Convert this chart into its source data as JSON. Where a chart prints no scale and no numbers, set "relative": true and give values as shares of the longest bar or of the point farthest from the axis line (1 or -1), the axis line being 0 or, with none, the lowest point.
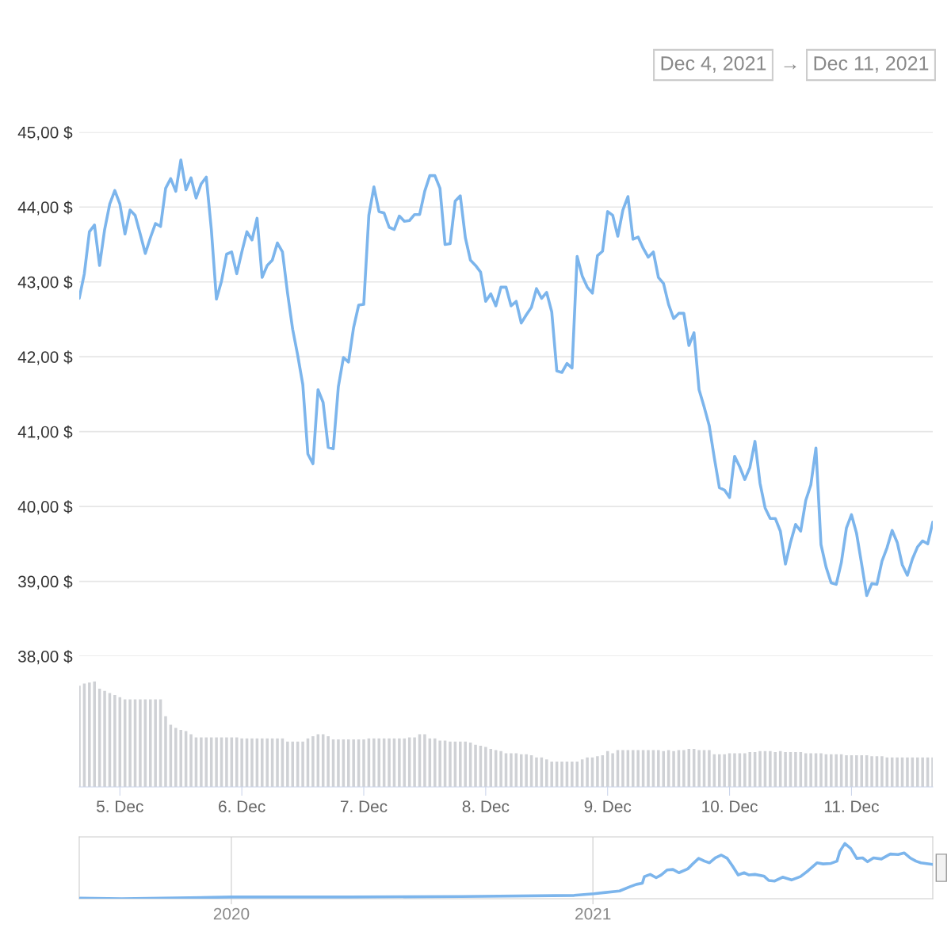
{
  "chart_data": [
    {
      "type": "line",
      "color": "#7cb5ec",
      "grid": "y",
      "tick_labels": "y",
      "xlim": [
        "2021-12-04T16:00",
        "2021-12-11T16:00"
      ],
      "ylim": [
        38,
        45
      ],
      "yticks": [
        {
          "value": 38,
          "label": "38,00 $"
        },
        {
          "value": 39,
          "label": "39,00 $"
        },
        {
          "value": 40,
          "label": "40,00 $"
        },
        {
          "value": 41,
          "label": "41,00 $"
        },
        {
          "value": 42,
          "label": "42,00 $"
        },
        {
          "value": 43,
          "label": "43,00 $"
        },
        {
          "value": 44,
          "label": "44,00 $"
        },
        {
          "value": 45,
          "label": "45,00 $"
        }
      ],
      "annotations": [
        "Dec 4, 2021",
        "→",
        "Dec 11, 2021"
      ],
      "x": [
        "2021-12-04T16:00",
        "2021-12-04T17:00",
        "2021-12-04T18:00",
        "2021-12-04T19:00",
        "2021-12-04T20:00",
        "2021-12-04T21:00",
        "2021-12-04T22:00",
        "2021-12-04T23:00",
        "2021-12-05T00:00",
        "2021-12-05T01:00",
        "2021-12-05T02:00",
        "2021-12-05T03:00",
        "2021-12-05T04:00",
        "2021-12-05T05:00",
        "2021-12-05T06:00",
        "2021-12-05T07:00",
        "2021-12-05T08:00",
        "2021-12-05T09:00",
        "2021-12-05T10:00",
        "2021-12-05T11:00",
        "2021-12-05T12:00",
        "2021-12-05T13:00",
        "2021-12-05T14:00",
        "2021-12-05T15:00",
        "2021-12-05T16:00",
        "2021-12-05T17:00",
        "2021-12-05T18:00",
        "2021-12-05T19:00",
        "2021-12-05T20:00",
        "2021-12-05T21:00",
        "2021-12-05T22:00",
        "2021-12-05T23:00",
        "2021-12-06T00:00",
        "2021-12-06T01:00",
        "2021-12-06T02:00",
        "2021-12-06T03:00",
        "2021-12-06T04:00",
        "2021-12-06T05:00",
        "2021-12-06T06:00",
        "2021-12-06T07:00",
        "2021-12-06T08:00",
        "2021-12-06T09:00",
        "2021-12-06T10:00",
        "2021-12-06T11:00",
        "2021-12-06T12:00",
        "2021-12-06T13:00",
        "2021-12-06T14:00",
        "2021-12-06T15:00",
        "2021-12-06T16:00",
        "2021-12-06T17:00",
        "2021-12-06T18:00",
        "2021-12-06T19:00",
        "2021-12-06T20:00",
        "2021-12-06T21:00",
        "2021-12-06T22:00",
        "2021-12-06T23:00",
        "2021-12-07T00:00",
        "2021-12-07T01:00",
        "2021-12-07T02:00",
        "2021-12-07T03:00",
        "2021-12-07T04:00",
        "2021-12-07T05:00",
        "2021-12-07T06:00",
        "2021-12-07T07:00",
        "2021-12-07T08:00",
        "2021-12-07T09:00",
        "2021-12-07T10:00",
        "2021-12-07T11:00",
        "2021-12-07T12:00",
        "2021-12-07T13:00",
        "2021-12-07T14:00",
        "2021-12-07T15:00",
        "2021-12-07T16:00",
        "2021-12-07T17:00",
        "2021-12-07T18:00",
        "2021-12-07T19:00",
        "2021-12-07T20:00",
        "2021-12-07T21:00",
        "2021-12-07T22:00",
        "2021-12-07T23:00",
        "2021-12-08T00:00",
        "2021-12-08T01:00",
        "2021-12-08T02:00",
        "2021-12-08T03:00",
        "2021-12-08T04:00",
        "2021-12-08T05:00",
        "2021-12-08T06:00",
        "2021-12-08T07:00",
        "2021-12-08T08:00",
        "2021-12-08T09:00",
        "2021-12-08T10:00",
        "2021-12-08T11:00",
        "2021-12-08T12:00",
        "2021-12-08T13:00",
        "2021-12-08T14:00",
        "2021-12-08T15:00",
        "2021-12-08T16:00",
        "2021-12-08T17:00",
        "2021-12-08T18:00",
        "2021-12-08T19:00",
        "2021-12-08T20:00",
        "2021-12-08T21:00",
        "2021-12-08T22:00",
        "2021-12-08T23:00",
        "2021-12-09T00:00",
        "2021-12-09T01:00",
        "2021-12-09T02:00",
        "2021-12-09T03:00",
        "2021-12-09T04:00",
        "2021-12-09T05:00",
        "2021-12-09T06:00",
        "2021-12-09T07:00",
        "2021-12-09T08:00",
        "2021-12-09T09:00",
        "2021-12-09T10:00",
        "2021-12-09T11:00",
        "2021-12-09T12:00",
        "2021-12-09T13:00",
        "2021-12-09T14:00",
        "2021-12-09T15:00",
        "2021-12-09T16:00",
        "2021-12-09T17:00",
        "2021-12-09T18:00",
        "2021-12-09T19:00",
        "2021-12-09T20:00",
        "2021-12-09T21:00",
        "2021-12-09T22:00",
        "2021-12-09T23:00",
        "2021-12-10T00:00",
        "2021-12-10T01:00",
        "2021-12-10T02:00",
        "2021-12-10T03:00",
        "2021-12-10T04:00",
        "2021-12-10T05:00",
        "2021-12-10T06:00",
        "2021-12-10T07:00",
        "2021-12-10T08:00",
        "2021-12-10T09:00",
        "2021-12-10T10:00",
        "2021-12-10T11:00",
        "2021-12-10T12:00",
        "2021-12-10T13:00",
        "2021-12-10T14:00",
        "2021-12-10T15:00",
        "2021-12-10T16:00",
        "2021-12-10T17:00",
        "2021-12-10T18:00",
        "2021-12-10T19:00",
        "2021-12-10T20:00",
        "2021-12-10T21:00",
        "2021-12-10T22:00",
        "2021-12-10T23:00",
        "2021-12-11T00:00",
        "2021-12-11T01:00",
        "2021-12-11T02:00",
        "2021-12-11T03:00",
        "2021-12-11T04:00",
        "2021-12-11T05:00",
        "2021-12-11T06:00",
        "2021-12-11T07:00",
        "2021-12-11T08:00",
        "2021-12-11T09:00",
        "2021-12-11T10:00",
        "2021-12-11T11:00",
        "2021-12-11T12:00",
        "2021-12-11T13:00",
        "2021-12-11T14:00",
        "2021-12-11T15:00",
        "2021-12-11T16:00"
      ],
      "values": [
        42.78,
        43.11,
        43.67,
        43.76,
        43.22,
        43.7,
        44.04,
        44.22,
        44.04,
        43.64,
        43.96,
        43.89,
        43.64,
        43.38,
        43.59,
        43.78,
        43.74,
        44.25,
        44.38,
        44.21,
        44.63,
        44.23,
        44.39,
        44.12,
        44.31,
        44.4,
        43.7,
        42.77,
        43.01,
        43.37,
        43.4,
        43.11,
        43.4,
        43.67,
        43.56,
        43.85,
        43.06,
        43.22,
        43.29,
        43.52,
        43.4,
        42.85,
        42.37,
        42.02,
        41.63,
        40.7,
        40.57,
        41.56,
        41.39,
        40.79,
        40.77,
        41.6,
        41.99,
        41.93,
        42.39,
        42.69,
        42.7,
        43.89,
        44.27,
        43.94,
        43.92,
        43.73,
        43.7,
        43.88,
        43.81,
        43.82,
        43.9,
        43.9,
        44.21,
        44.42,
        44.42,
        44.25,
        43.5,
        43.51,
        44.08,
        44.15,
        43.59,
        43.29,
        43.22,
        43.13,
        42.74,
        42.84,
        42.68,
        42.93,
        42.93,
        42.68,
        42.74,
        42.45,
        42.56,
        42.66,
        42.91,
        42.78,
        42.86,
        42.6,
        41.81,
        41.79,
        41.91,
        41.85,
        43.34,
        43.08,
        42.93,
        42.85,
        43.35,
        43.41,
        43.94,
        43.89,
        43.61,
        43.96,
        44.14,
        43.57,
        43.6,
        43.45,
        43.33,
        43.4,
        43.06,
        42.98,
        42.7,
        42.51,
        42.58,
        42.58,
        42.15,
        42.32,
        41.56,
        41.33,
        41.08,
        40.65,
        40.25,
        40.22,
        40.12,
        40.67,
        40.53,
        40.36,
        40.52,
        40.87,
        40.31,
        39.98,
        39.84,
        39.84,
        39.67,
        39.23,
        39.52,
        39.76,
        39.67,
        40.08,
        40.29,
        40.78,
        39.49,
        39.19,
        38.98,
        38.96,
        39.25,
        39.71,
        39.89,
        39.64,
        39.23,
        38.81,
        38.97,
        38.96,
        39.27,
        39.45,
        39.68,
        39.52,
        39.22,
        39.08,
        39.3,
        39.46,
        39.54,
        39.5,
        39.79
      ]
    },
    {
      "type": "bar",
      "color": "#cfd1d5",
      "relative": true,
      "tick_labels": "x",
      "xlim": [
        "2021-12-04T16:00",
        "2021-12-11T16:00"
      ],
      "xticks": [
        {
          "value": "2021-12-05",
          "label": "5. Dec"
        },
        {
          "value": "2021-12-06",
          "label": "6. Dec"
        },
        {
          "value": "2021-12-07",
          "label": "7. Dec"
        },
        {
          "value": "2021-12-08",
          "label": "8. Dec"
        },
        {
          "value": "2021-12-09",
          "label": "9. Dec"
        },
        {
          "value": "2021-12-10",
          "label": "10. Dec"
        },
        {
          "value": "2021-12-11",
          "label": "11. Dec"
        }
      ],
      "x": [
        "2021-12-04T16:00",
        "2021-12-04T17:00",
        "2021-12-04T18:00",
        "2021-12-04T19:00",
        "2021-12-04T20:00",
        "2021-12-04T21:00",
        "2021-12-04T22:00",
        "2021-12-04T23:00",
        "2021-12-05T00:00",
        "2021-12-05T01:00",
        "2021-12-05T02:00",
        "2021-12-05T03:00",
        "2021-12-05T04:00",
        "2021-12-05T05:00",
        "2021-12-05T06:00",
        "2021-12-05T07:00",
        "2021-12-05T08:00",
        "2021-12-05T09:00",
        "2021-12-05T10:00",
        "2021-12-05T11:00",
        "2021-12-05T12:00",
        "2021-12-05T13:00",
        "2021-12-05T14:00",
        "2021-12-05T15:00",
        "2021-12-05T16:00",
        "2021-12-05T17:00",
        "2021-12-05T18:00",
        "2021-12-05T19:00",
        "2021-12-05T20:00",
        "2021-12-05T21:00",
        "2021-12-05T22:00",
        "2021-12-05T23:00",
        "2021-12-06T00:00",
        "2021-12-06T01:00",
        "2021-12-06T02:00",
        "2021-12-06T03:00",
        "2021-12-06T04:00",
        "2021-12-06T05:00",
        "2021-12-06T06:00",
        "2021-12-06T07:00",
        "2021-12-06T08:00",
        "2021-12-06T09:00",
        "2021-12-06T10:00",
        "2021-12-06T11:00",
        "2021-12-06T12:00",
        "2021-12-06T13:00",
        "2021-12-06T14:00",
        "2021-12-06T15:00",
        "2021-12-06T16:00",
        "2021-12-06T17:00",
        "2021-12-06T18:00",
        "2021-12-06T19:00",
        "2021-12-06T20:00",
        "2021-12-06T21:00",
        "2021-12-06T22:00",
        "2021-12-06T23:00",
        "2021-12-07T00:00",
        "2021-12-07T01:00",
        "2021-12-07T02:00",
        "2021-12-07T03:00",
        "2021-12-07T04:00",
        "2021-12-07T05:00",
        "2021-12-07T06:00",
        "2021-12-07T07:00",
        "2021-12-07T08:00",
        "2021-12-07T09:00",
        "2021-12-07T10:00",
        "2021-12-07T11:00",
        "2021-12-07T12:00",
        "2021-12-07T13:00",
        "2021-12-07T14:00",
        "2021-12-07T15:00",
        "2021-12-07T16:00",
        "2021-12-07T17:00",
        "2021-12-07T18:00",
        "2021-12-07T19:00",
        "2021-12-07T20:00",
        "2021-12-07T21:00",
        "2021-12-07T22:00",
        "2021-12-07T23:00",
        "2021-12-08T00:00",
        "2021-12-08T01:00",
        "2021-12-08T02:00",
        "2021-12-08T03:00",
        "2021-12-08T04:00",
        "2021-12-08T05:00",
        "2021-12-08T06:00",
        "2021-12-08T07:00",
        "2021-12-08T08:00",
        "2021-12-08T09:00",
        "2021-12-08T10:00",
        "2021-12-08T11:00",
        "2021-12-08T12:00",
        "2021-12-08T13:00",
        "2021-12-08T14:00",
        "2021-12-08T15:00",
        "2021-12-08T16:00",
        "2021-12-08T17:00",
        "2021-12-08T18:00",
        "2021-12-08T19:00",
        "2021-12-08T20:00",
        "2021-12-08T21:00",
        "2021-12-08T22:00",
        "2021-12-08T23:00",
        "2021-12-09T00:00",
        "2021-12-09T01:00",
        "2021-12-09T02:00",
        "2021-12-09T03:00",
        "2021-12-09T04:00",
        "2021-12-09T05:00",
        "2021-12-09T06:00",
        "2021-12-09T07:00",
        "2021-12-09T08:00",
        "2021-12-09T09:00",
        "2021-12-09T10:00",
        "2021-12-09T11:00",
        "2021-12-09T12:00",
        "2021-12-09T13:00",
        "2021-12-09T14:00",
        "2021-12-09T15:00",
        "2021-12-09T16:00",
        "2021-12-09T17:00",
        "2021-12-09T18:00",
        "2021-12-09T19:00",
        "2021-12-09T20:00",
        "2021-12-09T21:00",
        "2021-12-09T22:00",
        "2021-12-09T23:00",
        "2021-12-10T00:00",
        "2021-12-10T01:00",
        "2021-12-10T02:00",
        "2021-12-10T03:00",
        "2021-12-10T04:00",
        "2021-12-10T05:00",
        "2021-12-10T06:00",
        "2021-12-10T07:00",
        "2021-12-10T08:00",
        "2021-12-10T09:00",
        "2021-12-10T10:00",
        "2021-12-10T11:00",
        "2021-12-10T12:00",
        "2021-12-10T13:00",
        "2021-12-10T14:00",
        "2021-12-10T15:00",
        "2021-12-10T16:00",
        "2021-12-10T17:00",
        "2021-12-10T18:00",
        "2021-12-10T19:00",
        "2021-12-10T20:00",
        "2021-12-10T21:00",
        "2021-12-10T22:00",
        "2021-12-10T23:00",
        "2021-12-11T00:00",
        "2021-12-11T01:00",
        "2021-12-11T02:00",
        "2021-12-11T03:00",
        "2021-12-11T04:00",
        "2021-12-11T05:00",
        "2021-12-11T06:00",
        "2021-12-11T07:00",
        "2021-12-11T08:00",
        "2021-12-11T09:00",
        "2021-12-11T10:00",
        "2021-12-11T11:00",
        "2021-12-11T12:00",
        "2021-12-11T13:00",
        "2021-12-11T14:00",
        "2021-12-11T15:00",
        "2021-12-11T16:00"
      ],
      "values": [
        0.96,
        0.98,
        0.99,
        1,
        0.93,
        0.91,
        0.89,
        0.87,
        0.85,
        0.83,
        0.83,
        0.83,
        0.83,
        0.83,
        0.83,
        0.83,
        0.83,
        0.67,
        0.59,
        0.56,
        0.54,
        0.53,
        0.5,
        0.47,
        0.47,
        0.47,
        0.47,
        0.47,
        0.47,
        0.47,
        0.47,
        0.47,
        0.46,
        0.46,
        0.46,
        0.46,
        0.46,
        0.46,
        0.46,
        0.46,
        0.46,
        0.43,
        0.43,
        0.43,
        0.43,
        0.46,
        0.48,
        0.5,
        0.5,
        0.48,
        0.45,
        0.45,
        0.45,
        0.45,
        0.45,
        0.45,
        0.45,
        0.46,
        0.46,
        0.46,
        0.46,
        0.46,
        0.46,
        0.46,
        0.46,
        0.47,
        0.47,
        0.5,
        0.5,
        0.46,
        0.46,
        0.44,
        0.44,
        0.43,
        0.43,
        0.43,
        0.43,
        0.42,
        0.4,
        0.39,
        0.38,
        0.36,
        0.35,
        0.34,
        0.32,
        0.32,
        0.32,
        0.31,
        0.31,
        0.3,
        0.28,
        0.28,
        0.26,
        0.24,
        0.24,
        0.24,
        0.24,
        0.24,
        0.24,
        0.26,
        0.28,
        0.28,
        0.29,
        0.3,
        0.34,
        0.32,
        0.35,
        0.35,
        0.35,
        0.35,
        0.35,
        0.35,
        0.35,
        0.35,
        0.35,
        0.34,
        0.35,
        0.34,
        0.35,
        0.35,
        0.36,
        0.36,
        0.35,
        0.35,
        0.35,
        0.31,
        0.31,
        0.31,
        0.32,
        0.32,
        0.32,
        0.32,
        0.33,
        0.33,
        0.34,
        0.34,
        0.34,
        0.33,
        0.34,
        0.33,
        0.33,
        0.33,
        0.33,
        0.32,
        0.32,
        0.32,
        0.32,
        0.31,
        0.31,
        0.31,
        0.31,
        0.3,
        0.3,
        0.3,
        0.3,
        0.3,
        0.29,
        0.29,
        0.29,
        0.28,
        0.28,
        0.28,
        0.28,
        0.28,
        0.28,
        0.28,
        0.28,
        0.28,
        0.28
      ]
    },
    {
      "type": "line",
      "color": "#7cb5ec",
      "relative": true,
      "grid": "x",
      "tick_labels": "x",
      "xlim": [
        "2019-07-31",
        "2021-12-11"
      ],
      "xticks": [
        {
          "value": "2020-01-01",
          "label": "2020"
        },
        {
          "value": "2021-01-01",
          "label": "2021"
        }
      ],
      "x": [
        "2019-08-01",
        "2019-09-12",
        "2020-01-01",
        "2020-04-28",
        "2020-08-21",
        "2020-12-13",
        "2021-01-02",
        "2021-01-28",
        "2021-02-08",
        "2021-02-14",
        "2021-02-20",
        "2021-02-22",
        "2021-02-28",
        "2021-03-06",
        "2021-03-11",
        "2021-03-17",
        "2021-03-23",
        "2021-03-29",
        "2021-04-07",
        "2021-04-12",
        "2021-04-18",
        "2021-04-24",
        "2021-04-29",
        "2021-05-05",
        "2021-05-11",
        "2021-05-17",
        "2021-05-22",
        "2021-05-28",
        "2021-06-03",
        "2021-06-08",
        "2021-06-14",
        "2021-06-23",
        "2021-06-28",
        "2021-07-04",
        "2021-07-12",
        "2021-07-21",
        "2021-07-30",
        "2021-08-07",
        "2021-08-16",
        "2021-08-22",
        "2021-08-30",
        "2021-09-05",
        "2021-09-08",
        "2021-09-13",
        "2021-09-19",
        "2021-09-25",
        "2021-10-01",
        "2021-10-06",
        "2021-10-12",
        "2021-10-20",
        "2021-10-29",
        "2021-11-06",
        "2021-11-12",
        "2021-11-18",
        "2021-11-24",
        "2021-11-29",
        "2021-12-11"
      ],
      "values": [
        0.01,
        0,
        0.03,
        0.03,
        0.04,
        0.06,
        0.09,
        0.14,
        0.22,
        0.26,
        0.28,
        0.4,
        0.44,
        0.38,
        0.43,
        0.52,
        0.53,
        0.47,
        0.54,
        0.63,
        0.73,
        0.68,
        0.65,
        0.74,
        0.79,
        0.73,
        0.6,
        0.43,
        0.47,
        0.43,
        0.44,
        0.41,
        0.33,
        0.32,
        0.39,
        0.34,
        0.4,
        0.51,
        0.65,
        0.63,
        0.64,
        0.68,
        0.86,
        1,
        0.91,
        0.73,
        0.74,
        0.67,
        0.74,
        0.72,
        0.81,
        0.8,
        0.83,
        0.74,
        0.68,
        0.65,
        0.62
      ]
    }
  ]
}
